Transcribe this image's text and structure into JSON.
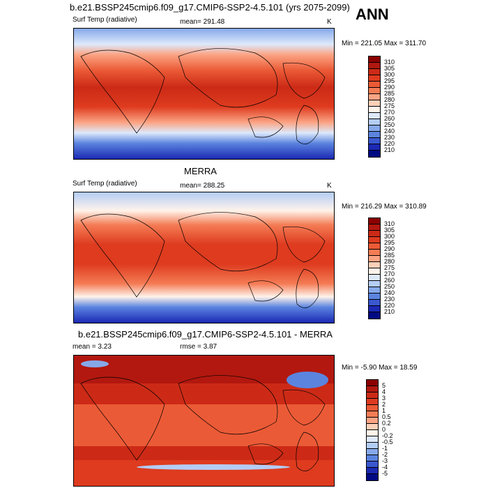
{
  "header": {
    "title": "b.e21.BSSP245cmip6.f09_g17.CMIP6-SSP2-4.5.101 (yrs 2075-2099)",
    "season": "ANN"
  },
  "panels": [
    {
      "id": "model",
      "heading": "",
      "left_label": "Surf Temp (radiative)",
      "center_label": "mean= 291.48",
      "right_label": "K",
      "minmax": "Min = 221.05 Max = 311.70",
      "colorbar_labels": [
        "310",
        "305",
        "300",
        "295",
        "290",
        "285",
        "280",
        "275",
        "270",
        "260",
        "250",
        "240",
        "230",
        "220",
        "210"
      ],
      "colorbar_colors": [
        "#8b0000",
        "#b2180f",
        "#cc2a16",
        "#de3b1f",
        "#eb5a36",
        "#f47c55",
        "#fba484",
        "#fdd0b8",
        "#fff3ea",
        "#dde9fb",
        "#b4cdf5",
        "#86a9ea",
        "#5b84df",
        "#3a58d0",
        "#1b29b4",
        "#000a82"
      ]
    },
    {
      "id": "obs",
      "heading": "MERRA",
      "left_label": "Surf Temp (radiative)",
      "center_label": "mean= 288.25",
      "right_label": "K",
      "minmax": "Min = 216.29 Max = 310.89",
      "colorbar_labels": [
        "310",
        "305",
        "300",
        "295",
        "290",
        "285",
        "280",
        "275",
        "270",
        "260",
        "250",
        "240",
        "230",
        "220",
        "210"
      ],
      "colorbar_colors": [
        "#8b0000",
        "#b2180f",
        "#cc2a16",
        "#de3b1f",
        "#eb5a36",
        "#f47c55",
        "#fba484",
        "#fdd0b8",
        "#fff3ea",
        "#dde9fb",
        "#b4cdf5",
        "#86a9ea",
        "#5b84df",
        "#3a58d0",
        "#1b29b4",
        "#000a82"
      ]
    },
    {
      "id": "diff",
      "heading": "b.e21.BSSP245cmip6.f09_g17.CMIP6-SSP2-4.5.101 - MERRA",
      "left_label": "mean =   3.23",
      "center_label": "rmse =   3.87",
      "right_label": "",
      "minmax": "Min =  -5.90 Max =  18.59",
      "colorbar_labels": [
        "5",
        "4",
        "3",
        "2",
        "1",
        "0.5",
        "0.2",
        "0",
        "-0.2",
        "-0.5",
        "-1",
        "-2",
        "-3",
        "-4",
        "-5"
      ],
      "colorbar_colors": [
        "#8b0000",
        "#b2180f",
        "#cc2a16",
        "#de3b1f",
        "#eb5a36",
        "#f47c55",
        "#fba484",
        "#fdd0b8",
        "#fff3ea",
        "#dde9fb",
        "#b4cdf5",
        "#86a9ea",
        "#5b84df",
        "#3a58d0",
        "#1b29b4",
        "#000a82"
      ]
    }
  ]
}
